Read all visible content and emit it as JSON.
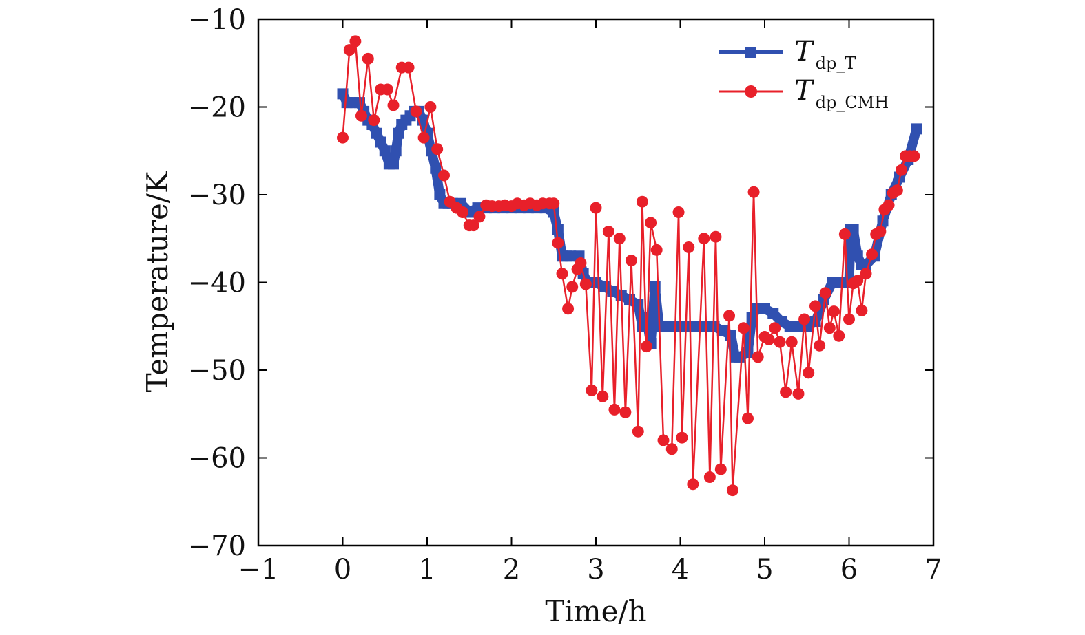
{
  "chart_data": {
    "type": "line",
    "title": "",
    "xlabel": "Time/h",
    "ylabel": "Temperature/K",
    "xlim": [
      -1,
      7
    ],
    "ylim": [
      -70,
      -10
    ],
    "xticks": [
      -1,
      0,
      1,
      2,
      3,
      4,
      5,
      6,
      7
    ],
    "yticks": [
      -70,
      -60,
      -50,
      -40,
      -30,
      -20,
      -10
    ],
    "xtick_labels": [
      "−1",
      "0",
      "1",
      "2",
      "3",
      "4",
      "5",
      "6",
      "7"
    ],
    "ytick_labels": [
      "−70",
      "−60",
      "−50",
      "−40",
      "−30",
      "−20",
      "−10"
    ],
    "grid": false,
    "legend_position": "top-right",
    "series": [
      {
        "name": "T",
        "subscript": "dp_T",
        "color": "#3050b0",
        "marker": "square",
        "x": [
          0,
          0.05,
          0.1,
          0.15,
          0.2,
          0.25,
          0.3,
          0.35,
          0.4,
          0.45,
          0.5,
          0.55,
          0.6,
          0.63,
          0.66,
          0.7,
          0.75,
          0.8,
          0.85,
          0.9,
          0.95,
          1.0,
          1.05,
          1.1,
          1.15,
          1.2,
          1.25,
          1.3,
          1.4,
          1.5,
          1.6,
          1.7,
          1.8,
          1.9,
          2.0,
          2.1,
          2.2,
          2.3,
          2.4,
          2.5,
          2.55,
          2.6,
          2.65,
          2.7,
          2.8,
          2.85,
          2.9,
          3.0,
          3.1,
          3.2,
          3.3,
          3.4,
          3.5,
          3.55,
          3.6,
          3.65,
          3.7,
          3.75,
          3.8,
          3.9,
          4.0,
          4.1,
          4.2,
          4.3,
          4.4,
          4.5,
          4.6,
          4.65,
          4.7,
          4.8,
          4.85,
          4.9,
          5.0,
          5.1,
          5.2,
          5.3,
          5.4,
          5.5,
          5.6,
          5.7,
          5.8,
          5.9,
          6.0,
          6.02,
          6.05,
          6.1,
          6.15,
          6.2,
          6.3,
          6.4,
          6.5,
          6.6,
          6.7,
          6.8
        ],
        "y": [
          -18.5,
          -19.5,
          -19.5,
          -19.5,
          -19.5,
          -20.5,
          -21.5,
          -22,
          -23,
          -24,
          -25,
          -26.5,
          -26.5,
          -25,
          -23,
          -22,
          -21.5,
          -21,
          -20.5,
          -20.5,
          -21.5,
          -23,
          -25,
          -27,
          -30,
          -31,
          -31,
          -31,
          -31,
          -32,
          -31.5,
          -31.5,
          -31.5,
          -31.5,
          -31.5,
          -31.5,
          -31.5,
          -31.5,
          -31.5,
          -32,
          -34,
          -37,
          -37,
          -37,
          -37,
          -39,
          -40,
          -40,
          -40.5,
          -41,
          -41.5,
          -42,
          -42.5,
          -45,
          -44,
          -47,
          -40.5,
          -45,
          -45,
          -45,
          -45,
          -45,
          -45,
          -45,
          -45,
          -45.5,
          -46,
          -48.5,
          -48.5,
          -48,
          -44,
          -43,
          -43,
          -43.5,
          -44.5,
          -45,
          -45,
          -45,
          -44.5,
          -42,
          -40,
          -40,
          -40,
          -34,
          -34,
          -37,
          -38,
          -38,
          -37,
          -33,
          -30,
          -28,
          -26,
          -22.5
        ]
      },
      {
        "name": "T",
        "subscript": "dp_CMH",
        "color": "#e8202a",
        "marker": "circle",
        "x": [
          0.0,
          0.08,
          0.15,
          0.22,
          0.3,
          0.37,
          0.45,
          0.53,
          0.6,
          0.7,
          0.78,
          0.87,
          0.96,
          1.04,
          1.12,
          1.2,
          1.27,
          1.35,
          1.42,
          1.5,
          1.55,
          1.62,
          1.7,
          1.77,
          1.85,
          1.92,
          2.0,
          2.07,
          2.15,
          2.22,
          2.3,
          2.37,
          2.45,
          2.5,
          2.55,
          2.6,
          2.67,
          2.72,
          2.78,
          2.82,
          2.88,
          2.95,
          3.0,
          3.08,
          3.15,
          3.22,
          3.28,
          3.35,
          3.42,
          3.5,
          3.55,
          3.6,
          3.65,
          3.72,
          3.8,
          3.9,
          3.98,
          4.02,
          4.1,
          4.15,
          4.28,
          4.35,
          4.42,
          4.48,
          4.58,
          4.62,
          4.75,
          4.8,
          4.87,
          4.92,
          5.0,
          5.05,
          5.12,
          5.18,
          5.25,
          5.32,
          5.4,
          5.47,
          5.52,
          5.6,
          5.65,
          5.72,
          5.77,
          5.82,
          5.88,
          5.95,
          6.0,
          6.05,
          6.1,
          6.15,
          6.2,
          6.27,
          6.32,
          6.37,
          6.42,
          6.47,
          6.52,
          6.57,
          6.62,
          6.67,
          6.72,
          6.77
        ],
        "y": [
          -23.5,
          -13.5,
          -12.5,
          -21,
          -14.5,
          -21.5,
          -18,
          -18,
          -19.8,
          -15.5,
          -15.5,
          -20.5,
          -23.5,
          -20,
          -24.8,
          -27.8,
          -30.8,
          -31.5,
          -32,
          -33.5,
          -33.5,
          -32.5,
          -31.2,
          -31.3,
          -31.3,
          -31.2,
          -31.3,
          -31,
          -31.2,
          -31,
          -31.2,
          -31,
          -31,
          -31,
          -35.5,
          -39,
          -43,
          -40.5,
          -38.5,
          -37.8,
          -40.2,
          -52.3,
          -31.5,
          -53,
          -34.2,
          -54.5,
          -35,
          -54.8,
          -37.5,
          -57,
          -30.8,
          -47.3,
          -33.2,
          -36.3,
          -58,
          -59,
          -32,
          -57.7,
          -36,
          -63,
          -35,
          -62.2,
          -34.8,
          -61.3,
          -43.8,
          -63.7,
          -45.2,
          -55.5,
          -29.7,
          -48.5,
          -46.2,
          -46.5,
          -45.2,
          -46.8,
          -52.5,
          -46.8,
          -52.7,
          -44.2,
          -50.3,
          -42.7,
          -47.2,
          -41.2,
          -45.2,
          -43.3,
          -46.1,
          -34.5,
          -44.2,
          -40.1,
          -39.8,
          -43.2,
          -39,
          -36.8,
          -34.5,
          -34.2,
          -31.7,
          -31.2,
          -29.8,
          -29.5,
          -27.2,
          -25.6,
          -25.6,
          -25.6
        ]
      }
    ]
  }
}
